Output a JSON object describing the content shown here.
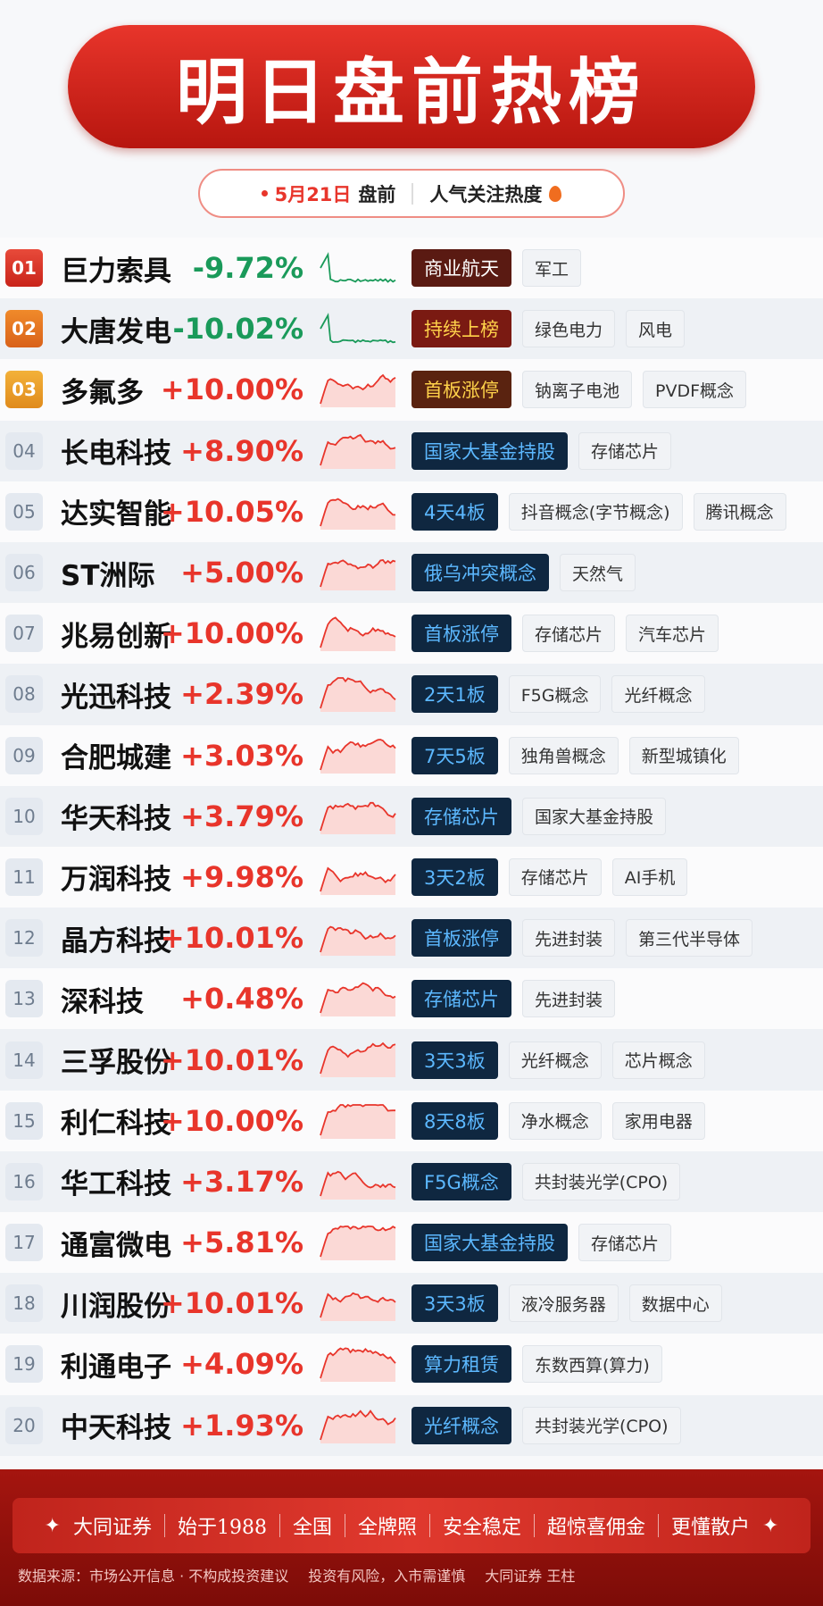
{
  "header": {
    "title": "明日盘前热榜",
    "date": "5月21日",
    "session": "盘前",
    "subtitle": "人气关注热度"
  },
  "rows": [
    {
      "rank": "01",
      "name": "巨力索具",
      "change": "-9.72%",
      "tags": [
        "商业航天",
        "军工"
      ]
    },
    {
      "rank": "02",
      "name": "大唐发电",
      "change": "-10.02%",
      "tags": [
        "持续上榜",
        "绿色电力",
        "风电"
      ]
    },
    {
      "rank": "03",
      "name": "多氟多",
      "change": "+10.00%",
      "tags": [
        "首板涨停",
        "钠离子电池",
        "PVDF概念"
      ]
    },
    {
      "rank": "04",
      "name": "长电科技",
      "change": "+8.90%",
      "tags": [
        "国家大基金持股",
        "存储芯片"
      ]
    },
    {
      "rank": "05",
      "name": "达实智能",
      "change": "+10.05%",
      "tags": [
        "4天4板",
        "抖音概念(字节概念)",
        "腾讯概念"
      ]
    },
    {
      "rank": "06",
      "name": "ST洲际",
      "change": "+5.00%",
      "tags": [
        "俄乌冲突概念",
        "天然气"
      ]
    },
    {
      "rank": "07",
      "name": "兆易创新",
      "change": "+10.00%",
      "tags": [
        "首板涨停",
        "存储芯片",
        "汽车芯片"
      ]
    },
    {
      "rank": "08",
      "name": "光迅科技",
      "change": "+2.39%",
      "tags": [
        "2天1板",
        "F5G概念",
        "光纤概念"
      ]
    },
    {
      "rank": "09",
      "name": "合肥城建",
      "change": "+3.03%",
      "tags": [
        "7天5板",
        "独角兽概念",
        "新型城镇化"
      ]
    },
    {
      "rank": "10",
      "name": "华天科技",
      "change": "+3.79%",
      "tags": [
        "存储芯片",
        "国家大基金持股"
      ]
    },
    {
      "rank": "11",
      "name": "万润科技",
      "change": "+9.98%",
      "tags": [
        "3天2板",
        "存储芯片",
        "AI手机"
      ]
    },
    {
      "rank": "12",
      "name": "晶方科技",
      "change": "+10.01%",
      "tags": [
        "首板涨停",
        "先进封装",
        "第三代半导体"
      ]
    },
    {
      "rank": "13",
      "name": "深科技",
      "change": "+0.48%",
      "tags": [
        "存储芯片",
        "先进封装"
      ]
    },
    {
      "rank": "14",
      "name": "三孚股份",
      "change": "+10.01%",
      "tags": [
        "3天3板",
        "光纤概念",
        "芯片概念"
      ]
    },
    {
      "rank": "15",
      "name": "利仁科技",
      "change": "+10.00%",
      "tags": [
        "8天8板",
        "净水概念",
        "家用电器"
      ]
    },
    {
      "rank": "16",
      "name": "华工科技",
      "change": "+3.17%",
      "tags": [
        "F5G概念",
        "共封装光学(CPO)"
      ]
    },
    {
      "rank": "17",
      "name": "通富微电",
      "change": "+5.81%",
      "tags": [
        "国家大基金持股",
        "存储芯片"
      ]
    },
    {
      "rank": "18",
      "name": "川润股份",
      "change": "+10.01%",
      "tags": [
        "3天3板",
        "液冷服务器",
        "数据中心"
      ]
    },
    {
      "rank": "19",
      "name": "利通电子",
      "change": "+4.09%",
      "tags": [
        "算力租赁",
        "东数西算(算力)"
      ]
    },
    {
      "rank": "20",
      "name": "中天科技",
      "change": "+1.93%",
      "tags": [
        "光纤概念",
        "共封装光学(CPO)"
      ]
    }
  ],
  "footer": {
    "slogans": [
      "大同证券",
      "始于1988",
      "全国",
      "全牌照",
      "安全稳定",
      "超惊喜佣金",
      "更懂散户"
    ],
    "notes": [
      "数据来源：市场公开信息 · 不构成投资建议",
      "投资有风险，入市需谨慎",
      "大同证券 王柱"
    ]
  }
}
